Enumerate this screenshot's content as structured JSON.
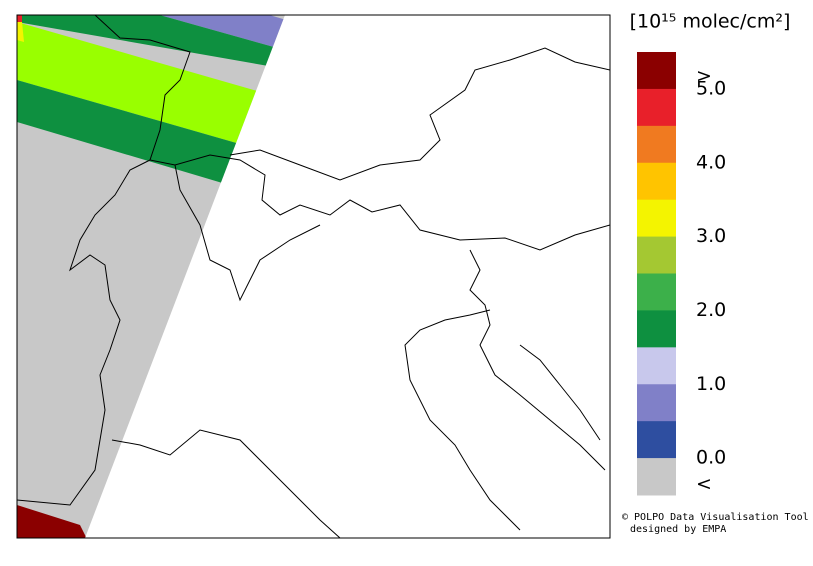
{
  "colorbar": {
    "unit": "[10¹⁵ molec/cm²]",
    "colors": [
      "#8b0000",
      "#e8202a",
      "#f07a20",
      "#ffc400",
      "#f4f400",
      "#a4c832",
      "#3cb04a",
      "#0e9040",
      "#c8c8ec",
      "#8080c8",
      "#2e4ea0",
      "#c8c8c8"
    ],
    "labels": [
      ">",
      "5.0",
      "4.0",
      "3.0",
      "2.0",
      "1.0",
      "0.0",
      "<"
    ]
  },
  "credits": [
    "© POLPO Data Visualisation Tool",
    "designed by EMPA"
  ]
}
